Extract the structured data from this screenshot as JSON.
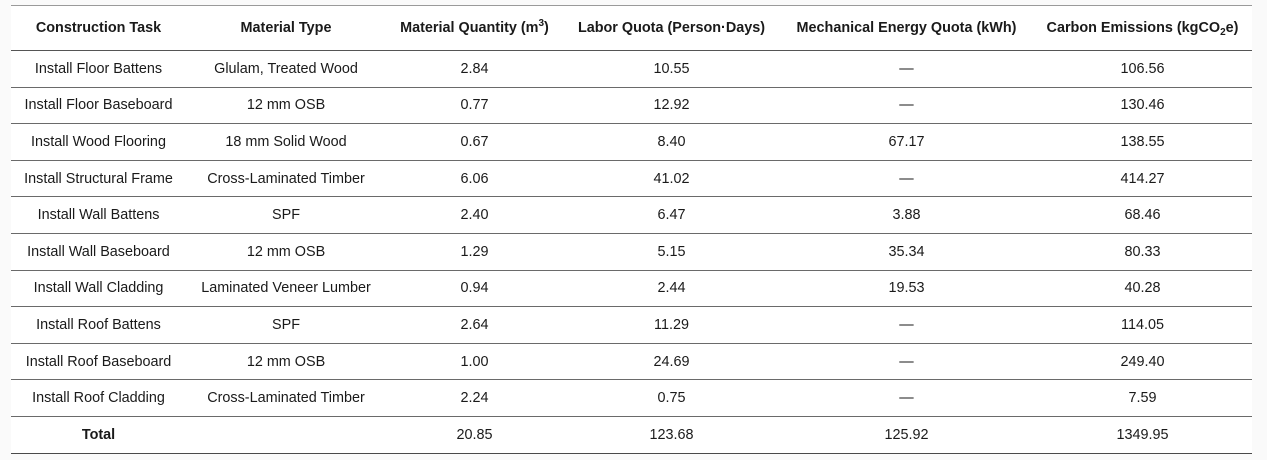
{
  "table": {
    "headers": {
      "task": "Construction Task",
      "material": "Material Type",
      "quantity_prefix": "Material Quantity (m",
      "quantity_sup": "3",
      "quantity_suffix": ")",
      "labor": "Labor Quota (Person·Days)",
      "energy": "Mechanical Energy Quota (kWh)",
      "carbon_prefix": "Carbon Emissions (kgCO",
      "carbon_sub": "2",
      "carbon_suffix": "e)"
    },
    "rows": [
      {
        "task": "Install Floor Battens",
        "material": "Glulam, Treated Wood",
        "quantity": "2.84",
        "labor": "10.55",
        "energy": "—",
        "carbon": "106.56"
      },
      {
        "task": "Install Floor Baseboard",
        "material": "12 mm OSB",
        "quantity": "0.77",
        "labor": "12.92",
        "energy": "—",
        "carbon": "130.46"
      },
      {
        "task": "Install Wood Flooring",
        "material": "18 mm Solid Wood",
        "quantity": "0.67",
        "labor": "8.40",
        "energy": "67.17",
        "carbon": "138.55"
      },
      {
        "task": "Install Structural Frame",
        "material": "Cross-Laminated Timber",
        "quantity": "6.06",
        "labor": "41.02",
        "energy": "—",
        "carbon": "414.27"
      },
      {
        "task": "Install Wall Battens",
        "material": "SPF",
        "quantity": "2.40",
        "labor": "6.47",
        "energy": "3.88",
        "carbon": "68.46"
      },
      {
        "task": "Install Wall Baseboard",
        "material": "12 mm OSB",
        "quantity": "1.29",
        "labor": "5.15",
        "energy": "35.34",
        "carbon": "80.33"
      },
      {
        "task": "Install Wall Cladding",
        "material": "Laminated Veneer Lumber",
        "quantity": "0.94",
        "labor": "2.44",
        "energy": "19.53",
        "carbon": "40.28"
      },
      {
        "task": "Install Roof Battens",
        "material": "SPF",
        "quantity": "2.64",
        "labor": "11.29",
        "energy": "—",
        "carbon": "114.05"
      },
      {
        "task": "Install Roof Baseboard",
        "material": "12 mm OSB",
        "quantity": "1.00",
        "labor": "24.69",
        "energy": "—",
        "carbon": "249.40"
      },
      {
        "task": "Install Roof Cladding",
        "material": "Cross-Laminated Timber",
        "quantity": "2.24",
        "labor": "0.75",
        "energy": "—",
        "carbon": "7.59"
      }
    ],
    "total": {
      "task": "Total",
      "material": "",
      "quantity": "20.85",
      "labor": "123.68",
      "energy": "125.92",
      "carbon": "1349.95"
    }
  }
}
